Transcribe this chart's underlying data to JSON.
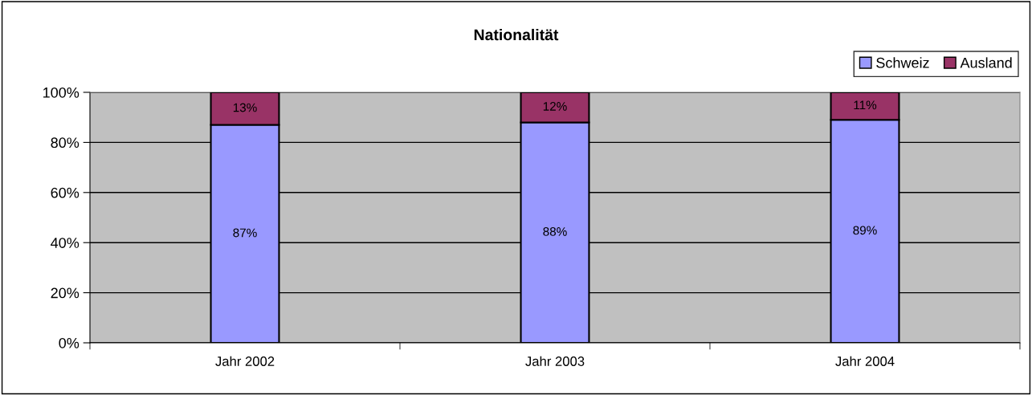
{
  "chart_data": {
    "type": "bar",
    "title": "Nationalität",
    "stacked": true,
    "categories": [
      "Jahr 2002",
      "Jahr 2003",
      "Jahr 2004"
    ],
    "series": [
      {
        "name": "Schweiz",
        "color": "#9999ff",
        "values": [
          87,
          88,
          89
        ],
        "value_labels": [
          "87%",
          "88%",
          "89%"
        ]
      },
      {
        "name": "Ausland",
        "color": "#993366",
        "values": [
          13,
          12,
          11
        ],
        "value_labels": [
          "13%",
          "12%",
          "11%"
        ]
      }
    ],
    "ylim": [
      0,
      100
    ],
    "yticks": [
      {
        "value": 0,
        "label": "0%"
      },
      {
        "value": 20,
        "label": "20%"
      },
      {
        "value": 40,
        "label": "40%"
      },
      {
        "value": 60,
        "label": "60%"
      },
      {
        "value": 80,
        "label": "80%"
      },
      {
        "value": 100,
        "label": "100%"
      }
    ],
    "grid": "y",
    "legend": "top right"
  }
}
